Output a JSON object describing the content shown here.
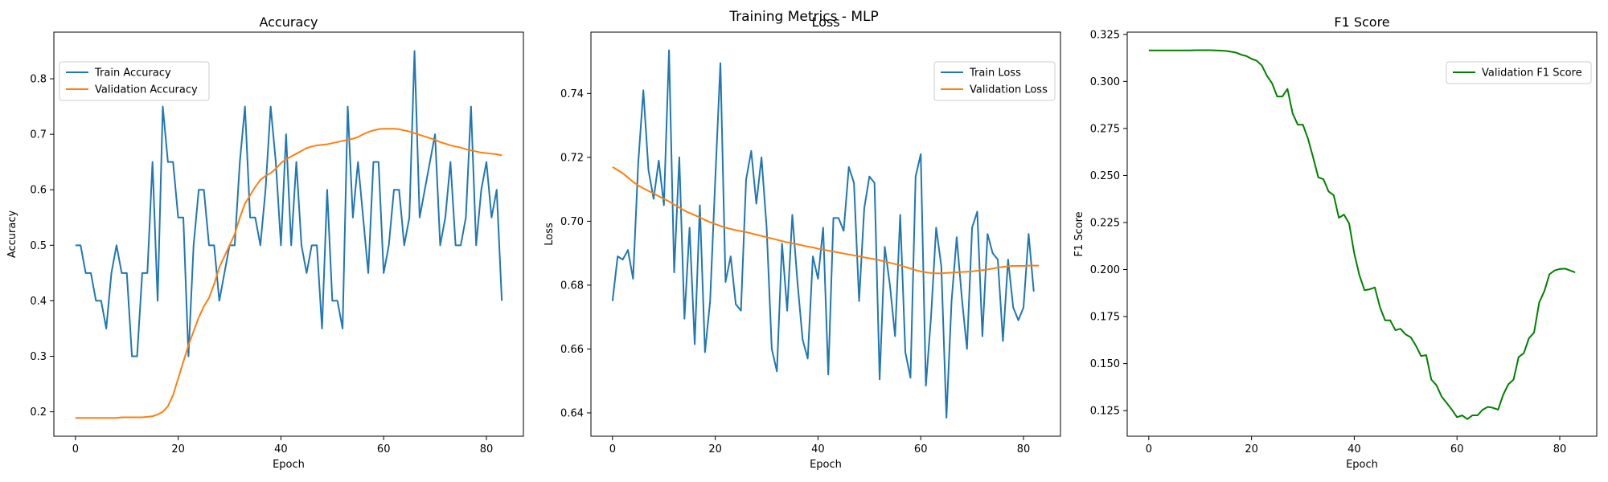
{
  "figure": {
    "suptitle": "Training Metrics - MLP"
  },
  "chart_data": [
    {
      "type": "line",
      "title": "Accuracy",
      "xlabel": "Epoch",
      "ylabel": "Accuracy",
      "xlim": [
        -4.2,
        87.2
      ],
      "ylim": [
        0.156,
        0.884
      ],
      "xticks": [
        0,
        20,
        40,
        60,
        80
      ],
      "yticks": [
        0.2,
        0.3,
        0.4,
        0.5,
        0.6,
        0.7,
        0.8
      ],
      "ytick_labels": [
        "0.2",
        "0.3",
        "0.4",
        "0.5",
        "0.6",
        "0.7",
        "0.8"
      ],
      "grid": false,
      "legend": "upper-left",
      "series": [
        {
          "name": "Train Accuracy",
          "color": "#1f77b4",
          "values": [
            0.5,
            0.5,
            0.45,
            0.45,
            0.4,
            0.4,
            0.35,
            0.45,
            0.5,
            0.45,
            0.45,
            0.3,
            0.3,
            0.45,
            0.45,
            0.65,
            0.4,
            0.75,
            0.65,
            0.65,
            0.55,
            0.55,
            0.3,
            0.5,
            0.6,
            0.6,
            0.5,
            0.5,
            0.4,
            0.45,
            0.5,
            0.5,
            0.65,
            0.75,
            0.55,
            0.55,
            0.5,
            0.6,
            0.75,
            0.65,
            0.5,
            0.7,
            0.5,
            0.65,
            0.5,
            0.45,
            0.5,
            0.5,
            0.35,
            0.6,
            0.4,
            0.4,
            0.35,
            0.75,
            0.55,
            0.65,
            0.55,
            0.45,
            0.65,
            0.65,
            0.45,
            0.5,
            0.6,
            0.6,
            0.5,
            0.55,
            0.85,
            0.55,
            0.6,
            0.65,
            0.7,
            0.5,
            0.55,
            0.65,
            0.5,
            0.5,
            0.55,
            0.75,
            0.5,
            0.6,
            0.65,
            0.55,
            0.6,
            0.4
          ]
        },
        {
          "name": "Validation Accuracy",
          "color": "#ff7f0e",
          "values": [
            0.189,
            0.189,
            0.189,
            0.189,
            0.189,
            0.189,
            0.189,
            0.189,
            0.189,
            0.19,
            0.19,
            0.19,
            0.19,
            0.19,
            0.191,
            0.192,
            0.195,
            0.2,
            0.21,
            0.23,
            0.26,
            0.29,
            0.32,
            0.345,
            0.37,
            0.39,
            0.405,
            0.43,
            0.46,
            0.48,
            0.5,
            0.52,
            0.55,
            0.575,
            0.59,
            0.605,
            0.618,
            0.625,
            0.63,
            0.638,
            0.648,
            0.655,
            0.66,
            0.665,
            0.67,
            0.675,
            0.678,
            0.68,
            0.681,
            0.682,
            0.684,
            0.686,
            0.688,
            0.69,
            0.692,
            0.695,
            0.7,
            0.704,
            0.707,
            0.709,
            0.71,
            0.71,
            0.71,
            0.709,
            0.707,
            0.705,
            0.702,
            0.699,
            0.696,
            0.693,
            0.69,
            0.686,
            0.683,
            0.68,
            0.678,
            0.676,
            0.673,
            0.671,
            0.669,
            0.667,
            0.666,
            0.665,
            0.664,
            0.662
          ]
        }
      ]
    },
    {
      "type": "line",
      "title": "Loss",
      "xlabel": "Epoch",
      "ylabel": "Loss",
      "xlim": [
        -4.2,
        87.2
      ],
      "ylim": [
        0.6327,
        0.7592
      ],
      "xticks": [
        0,
        20,
        40,
        60,
        80
      ],
      "yticks": [
        0.64,
        0.66,
        0.68,
        0.7,
        0.72,
        0.74
      ],
      "ytick_labels": [
        "0.64",
        "0.66",
        "0.68",
        "0.70",
        "0.72",
        "0.74"
      ],
      "grid": false,
      "legend": "upper-right",
      "series": [
        {
          "name": "Train Loss",
          "color": "#1f77b4",
          "values": [
            0.675,
            0.689,
            0.688,
            0.691,
            0.682,
            0.718,
            0.741,
            0.716,
            0.707,
            0.719,
            0.705,
            0.7535,
            0.684,
            0.72,
            0.6695,
            0.698,
            0.6615,
            0.705,
            0.659,
            0.675,
            0.713,
            0.7495,
            0.681,
            0.689,
            0.674,
            0.672,
            0.713,
            0.722,
            0.7055,
            0.72,
            0.698,
            0.66,
            0.653,
            0.693,
            0.672,
            0.702,
            0.681,
            0.663,
            0.657,
            0.689,
            0.682,
            0.698,
            0.652,
            0.701,
            0.701,
            0.697,
            0.717,
            0.712,
            0.675,
            0.704,
            0.714,
            0.712,
            0.6505,
            0.692,
            0.68,
            0.664,
            0.702,
            0.659,
            0.651,
            0.714,
            0.721,
            0.6485,
            0.67,
            0.698,
            0.686,
            0.6385,
            0.675,
            0.695,
            0.676,
            0.66,
            0.698,
            0.703,
            0.664,
            0.696,
            0.69,
            0.688,
            0.6625,
            0.688,
            0.673,
            0.669,
            0.673,
            0.696,
            0.678
          ]
        },
        {
          "name": "Validation Loss",
          "color": "#ff7f0e",
          "values": [
            0.717,
            0.716,
            0.715,
            0.7137,
            0.7123,
            0.7112,
            0.7103,
            0.7095,
            0.7087,
            0.7078,
            0.707,
            0.7062,
            0.7052,
            0.7043,
            0.7033,
            0.7026,
            0.7019,
            0.7012,
            0.7004,
            0.6997,
            0.6991,
            0.6985,
            0.698,
            0.6976,
            0.6972,
            0.6969,
            0.6966,
            0.6962,
            0.6958,
            0.6954,
            0.695,
            0.6946,
            0.6942,
            0.6938,
            0.6934,
            0.6931,
            0.6928,
            0.6924,
            0.6921,
            0.6918,
            0.6914,
            0.6911,
            0.6908,
            0.6905,
            0.6902,
            0.6899,
            0.6896,
            0.6893,
            0.689,
            0.6887,
            0.6884,
            0.6881,
            0.6878,
            0.6874,
            0.687,
            0.6866,
            0.6862,
            0.6857,
            0.6852,
            0.6847,
            0.6843,
            0.684,
            0.6838,
            0.6837,
            0.6837,
            0.6838,
            0.6839,
            0.684,
            0.6841,
            0.6842,
            0.6843,
            0.6845,
            0.6847,
            0.6849,
            0.6852,
            0.6855,
            0.6857,
            0.6859,
            0.686,
            0.686,
            0.686,
            0.6861,
            0.6861,
            0.6861
          ]
        }
      ]
    },
    {
      "type": "line",
      "title": "F1 Score",
      "xlabel": "Epoch",
      "ylabel": "F1 Score",
      "xlim": [
        -4.2,
        87.2
      ],
      "ylim": [
        0.1114,
        0.3262
      ],
      "xticks": [
        0,
        20,
        40,
        60,
        80
      ],
      "yticks": [
        0.125,
        0.15,
        0.175,
        0.2,
        0.225,
        0.25,
        0.275,
        0.3,
        0.325
      ],
      "ytick_labels": [
        "0.125",
        "0.150",
        "0.175",
        "0.200",
        "0.225",
        "0.250",
        "0.275",
        "0.300",
        "0.325"
      ],
      "grid": false,
      "legend": "upper-right",
      "series": [
        {
          "name": "Validation F1 Score",
          "color": "#008000",
          "values": [
            0.3165,
            0.3165,
            0.3165,
            0.3165,
            0.3165,
            0.3165,
            0.3165,
            0.3165,
            0.3165,
            0.3166,
            0.3166,
            0.3166,
            0.3166,
            0.3165,
            0.3164,
            0.3162,
            0.3158,
            0.3153,
            0.3142,
            0.3135,
            0.312,
            0.311,
            0.3085,
            0.303,
            0.299,
            0.292,
            0.292,
            0.296,
            0.283,
            0.277,
            0.277,
            0.2695,
            0.2595,
            0.249,
            0.248,
            0.2415,
            0.2395,
            0.2275,
            0.2292,
            0.2245,
            0.2085,
            0.197,
            0.189,
            0.1895,
            0.1905,
            0.18,
            0.173,
            0.173,
            0.1678,
            0.1685,
            0.1655,
            0.164,
            0.1595,
            0.154,
            0.1545,
            0.1415,
            0.1385,
            0.1325,
            0.129,
            0.1255,
            0.1215,
            0.1225,
            0.1205,
            0.1225,
            0.1225,
            0.1255,
            0.127,
            0.1265,
            0.1255,
            0.1335,
            0.139,
            0.1415,
            0.1535,
            0.1555,
            0.1635,
            0.1665,
            0.1825,
            0.1885,
            0.1975,
            0.1995,
            0.2003,
            0.2005,
            0.1995,
            0.1985
          ]
        }
      ]
    }
  ]
}
